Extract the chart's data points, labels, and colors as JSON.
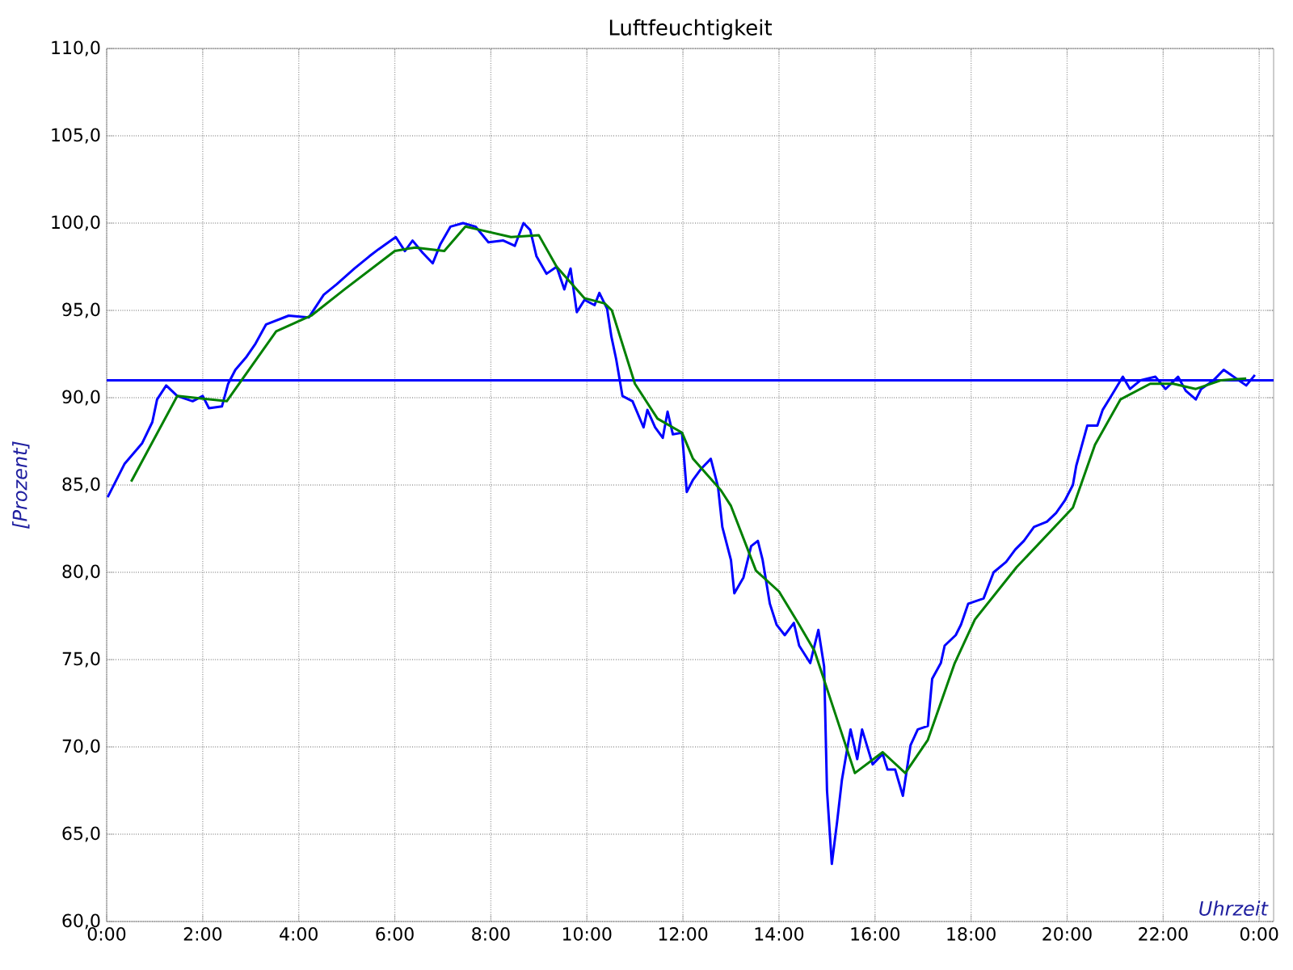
{
  "chart_data": {
    "type": "line",
    "title": "Luftfeuchtigkeit",
    "xlabel": "Uhrzeit",
    "ylabel": "[Prozent]",
    "xlim": [
      0,
      24.3
    ],
    "ylim": [
      60,
      110
    ],
    "xticks": [
      {
        "value": 0,
        "label": "0:00"
      },
      {
        "value": 2,
        "label": "2:00"
      },
      {
        "value": 4,
        "label": "4:00"
      },
      {
        "value": 6,
        "label": "6:00"
      },
      {
        "value": 8,
        "label": "8:00"
      },
      {
        "value": 10,
        "label": "10:00"
      },
      {
        "value": 12,
        "label": "12:00"
      },
      {
        "value": 14,
        "label": "14:00"
      },
      {
        "value": 16,
        "label": "16:00"
      },
      {
        "value": 18,
        "label": "18:00"
      },
      {
        "value": 20,
        "label": "20:00"
      },
      {
        "value": 22,
        "label": "22:00"
      },
      {
        "value": 24,
        "label": "0:00"
      }
    ],
    "yticks": [
      {
        "value": 60,
        "label": "60,0"
      },
      {
        "value": 65,
        "label": "65,0"
      },
      {
        "value": 70,
        "label": "70,0"
      },
      {
        "value": 75,
        "label": "75,0"
      },
      {
        "value": 80,
        "label": "80,0"
      },
      {
        "value": 85,
        "label": "85,0"
      },
      {
        "value": 90,
        "label": "90,0"
      },
      {
        "value": 95,
        "label": "95,0"
      },
      {
        "value": 100,
        "label": "100,0"
      },
      {
        "value": 105,
        "label": "105,0"
      },
      {
        "value": 110,
        "label": "110,0"
      }
    ],
    "grid": true,
    "marker": "none",
    "line_style": "solid",
    "ref_lines": [
      {
        "axis": "y",
        "value": 91,
        "color": "#0000ff"
      }
    ],
    "series": [
      {
        "color": "#0000ff",
        "x": [
          0.02,
          0.37,
          0.74,
          0.95,
          1.05,
          1.24,
          1.47,
          1.79,
          2.0,
          2.13,
          2.4,
          2.53,
          2.68,
          2.9,
          3.1,
          3.32,
          3.79,
          4.21,
          4.52,
          4.79,
          5.16,
          5.47,
          5.66,
          6.02,
          6.21,
          6.37,
          6.58,
          6.79,
          6.95,
          7.16,
          7.42,
          7.68,
          7.95,
          8.26,
          8.5,
          8.68,
          8.82,
          8.95,
          9.16,
          9.37,
          9.53,
          9.66,
          9.79,
          9.95,
          10.16,
          10.26,
          10.42,
          10.51,
          10.61,
          10.74,
          10.95,
          11.18,
          11.26,
          11.42,
          11.58,
          11.68,
          11.79,
          11.98,
          12.08,
          12.21,
          12.37,
          12.58,
          12.73,
          12.82,
          13.0,
          13.07,
          13.26,
          13.42,
          13.56,
          13.66,
          13.81,
          13.95,
          14.12,
          14.31,
          14.42,
          14.65,
          14.82,
          14.94,
          15.0,
          15.1,
          15.21,
          15.31,
          15.49,
          15.63,
          15.73,
          15.95,
          16.16,
          16.26,
          16.42,
          16.58,
          16.74,
          16.89,
          17.1,
          17.19,
          17.37,
          17.45,
          17.68,
          17.79,
          17.94,
          18.26,
          18.47,
          18.73,
          18.92,
          19.1,
          19.31,
          19.58,
          19.77,
          19.95,
          20.12,
          20.19,
          20.29,
          20.42,
          20.63,
          20.74,
          20.94,
          21.16,
          21.31,
          21.53,
          21.84,
          22.05,
          22.31,
          22.47,
          22.68,
          22.79,
          23.05,
          23.26,
          23.52,
          23.73,
          23.91
        ],
        "values": [
          84.3,
          86.2,
          87.4,
          88.6,
          89.9,
          90.7,
          90.1,
          89.8,
          90.1,
          89.4,
          89.5,
          90.8,
          91.6,
          92.3,
          93.1,
          94.2,
          94.7,
          94.6,
          95.9,
          96.5,
          97.4,
          98.1,
          98.5,
          99.2,
          98.4,
          99.0,
          98.3,
          97.7,
          98.8,
          99.8,
          100.0,
          99.8,
          98.9,
          99.0,
          98.7,
          100.0,
          99.6,
          98.1,
          97.1,
          97.5,
          96.2,
          97.4,
          94.9,
          95.6,
          95.3,
          96.0,
          95.1,
          93.5,
          92.2,
          90.1,
          89.8,
          88.3,
          89.3,
          88.3,
          87.7,
          89.2,
          87.9,
          88.0,
          84.6,
          85.3,
          85.9,
          86.5,
          84.9,
          82.6,
          80.7,
          78.8,
          79.7,
          81.5,
          81.8,
          80.7,
          78.2,
          77.0,
          76.4,
          77.1,
          75.8,
          74.8,
          76.7,
          74.6,
          67.5,
          63.3,
          65.7,
          68.1,
          71.0,
          69.3,
          71.0,
          69.0,
          69.6,
          68.7,
          68.7,
          67.2,
          70.1,
          71.0,
          71.2,
          73.9,
          74.8,
          75.8,
          76.4,
          77.0,
          78.2,
          78.5,
          80.0,
          80.6,
          81.3,
          81.8,
          82.6,
          82.9,
          83.4,
          84.1,
          85.0,
          86.1,
          87.1,
          88.4,
          88.4,
          89.3,
          90.2,
          91.2,
          90.5,
          91.0,
          91.2,
          90.5,
          91.2,
          90.4,
          89.9,
          90.5,
          91.0,
          91.6,
          91.1,
          90.7,
          91.3
        ]
      },
      {
        "color": "#008000",
        "x": [
          0.51,
          1.47,
          2.5,
          3.53,
          4.26,
          4.95,
          6.0,
          6.42,
          7.03,
          7.47,
          7.79,
          8.42,
          9.0,
          9.37,
          9.95,
          10.37,
          10.52,
          11.0,
          11.47,
          11.98,
          12.21,
          12.79,
          13.0,
          13.52,
          14.0,
          14.42,
          14.74,
          15.58,
          16.16,
          16.63,
          17.1,
          17.66,
          18.08,
          18.95,
          20.12,
          20.58,
          21.11,
          21.73,
          22.21,
          22.68,
          23.21,
          23.73
        ],
        "values": [
          85.2,
          90.1,
          89.8,
          93.8,
          94.7,
          96.2,
          98.4,
          98.6,
          98.4,
          99.8,
          99.6,
          99.2,
          99.3,
          97.5,
          95.7,
          95.4,
          95.0,
          90.8,
          88.8,
          88.0,
          86.5,
          84.7,
          83.8,
          80.1,
          78.9,
          77.0,
          75.5,
          68.5,
          69.7,
          68.5,
          70.4,
          74.8,
          77.3,
          80.3,
          83.7,
          87.3,
          89.9,
          90.8,
          90.8,
          90.5,
          91.0,
          91.1
        ]
      }
    ]
  }
}
